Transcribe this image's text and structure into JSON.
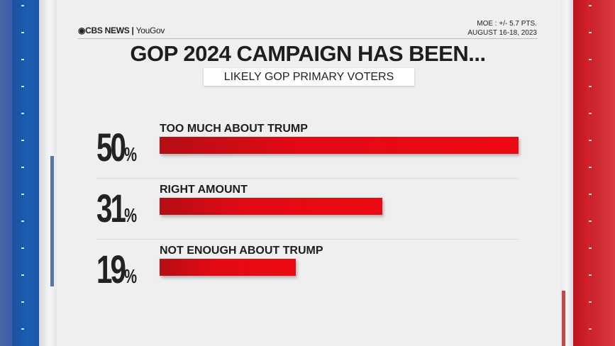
{
  "header": {
    "brand": "CBS NEWS",
    "partner": "YouGov",
    "moe": "MOE : +/- 5.7 PTS.",
    "dates": "AUGUST 16-18, 2023"
  },
  "chart_data": {
    "type": "bar",
    "title": "GOP 2024 CAMPAIGN HAS BEEN...",
    "subtitle": "LIKELY GOP PRIMARY VOTERS",
    "categories": [
      "TOO MUCH ABOUT TRUMP",
      "RIGHT AMOUNT",
      "NOT ENOUGH ABOUT TRUMP"
    ],
    "values": [
      50,
      31,
      19
    ],
    "value_labels": [
      "50",
      "31",
      "19"
    ],
    "unit": "%",
    "orientation": "horizontal",
    "xlim": [
      0,
      50
    ],
    "bar_color": "#e40a14"
  }
}
